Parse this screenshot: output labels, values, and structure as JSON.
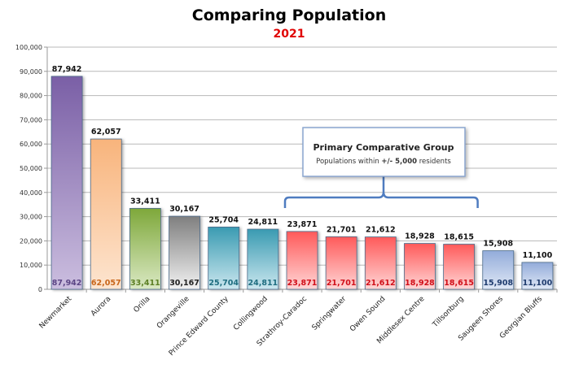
{
  "chart_data": {
    "type": "bar",
    "title": "Comparing Population",
    "subtitle": "2021",
    "xlabel": "",
    "ylabel": "",
    "ylim": [
      0,
      100000
    ],
    "yticks": [
      0,
      10000,
      20000,
      30000,
      40000,
      50000,
      60000,
      70000,
      80000,
      90000,
      100000
    ],
    "ytick_labels": [
      "0",
      "10,000",
      "20,000",
      "30,000",
      "40,000",
      "50,000",
      "60,000",
      "70,000",
      "80,000",
      "90,000",
      "100,000"
    ],
    "grid": true,
    "categories": [
      "Newmarket",
      "Aurora",
      "Orilla",
      "Orangeville",
      "Prince Edward County",
      "Collingwood",
      "Strathroy-Caradoc",
      "Springwater",
      "Owen Sound",
      "Middlesex Centre",
      "Tillsonburg",
      "Saugeen Shores",
      "Georgian Bluffs"
    ],
    "values": [
      87942,
      62057,
      33411,
      30167,
      25704,
      24811,
      23871,
      21701,
      21612,
      18928,
      18615,
      15908,
      11100
    ],
    "value_labels": [
      "87,942",
      "62,057",
      "33,411",
      "30,167",
      "25,704",
      "24,811",
      "23,871",
      "21,701",
      "21,612",
      "18,928",
      "18,615",
      "15,908",
      "11,100"
    ],
    "colors": [
      {
        "top": "#7a5fa6",
        "bottom": "#cbbedf",
        "label": "#5b4585"
      },
      {
        "top": "#f8b47c",
        "bottom": "#fde5d0",
        "label": "#c8651a"
      },
      {
        "top": "#7ea83a",
        "bottom": "#dbe9c4",
        "label": "#5d7f25"
      },
      {
        "top": "#7f7f7f",
        "bottom": "#f2f2f2",
        "label": "#222222"
      },
      {
        "top": "#3a9bb2",
        "bottom": "#cbe7ef",
        "label": "#1f6d80"
      },
      {
        "top": "#3a9bb2",
        "bottom": "#cbe7ef",
        "label": "#1f6d80"
      },
      {
        "top": "#ff5a5a",
        "bottom": "#ffd6d6",
        "label": "#d0101a"
      },
      {
        "top": "#ff5a5a",
        "bottom": "#ffd6d6",
        "label": "#d0101a"
      },
      {
        "top": "#ff5a5a",
        "bottom": "#ffd6d6",
        "label": "#d0101a"
      },
      {
        "top": "#ff5a5a",
        "bottom": "#ffd6d6",
        "label": "#d0101a"
      },
      {
        "top": "#ff5a5a",
        "bottom": "#ffd6d6",
        "label": "#d0101a"
      },
      {
        "top": "#93acda",
        "bottom": "#e0e8f6",
        "label": "#1f3c6e"
      },
      {
        "top": "#93acda",
        "bottom": "#e0e8f6",
        "label": "#1f3c6e"
      }
    ],
    "annotation": {
      "title": "Primary Comparative Group",
      "text_prefix": "Populations within ",
      "text_bold": "+/- 5,000",
      "text_suffix": " residents",
      "group_start": 6,
      "group_end": 10
    },
    "subtitle_color": "#e00000"
  }
}
